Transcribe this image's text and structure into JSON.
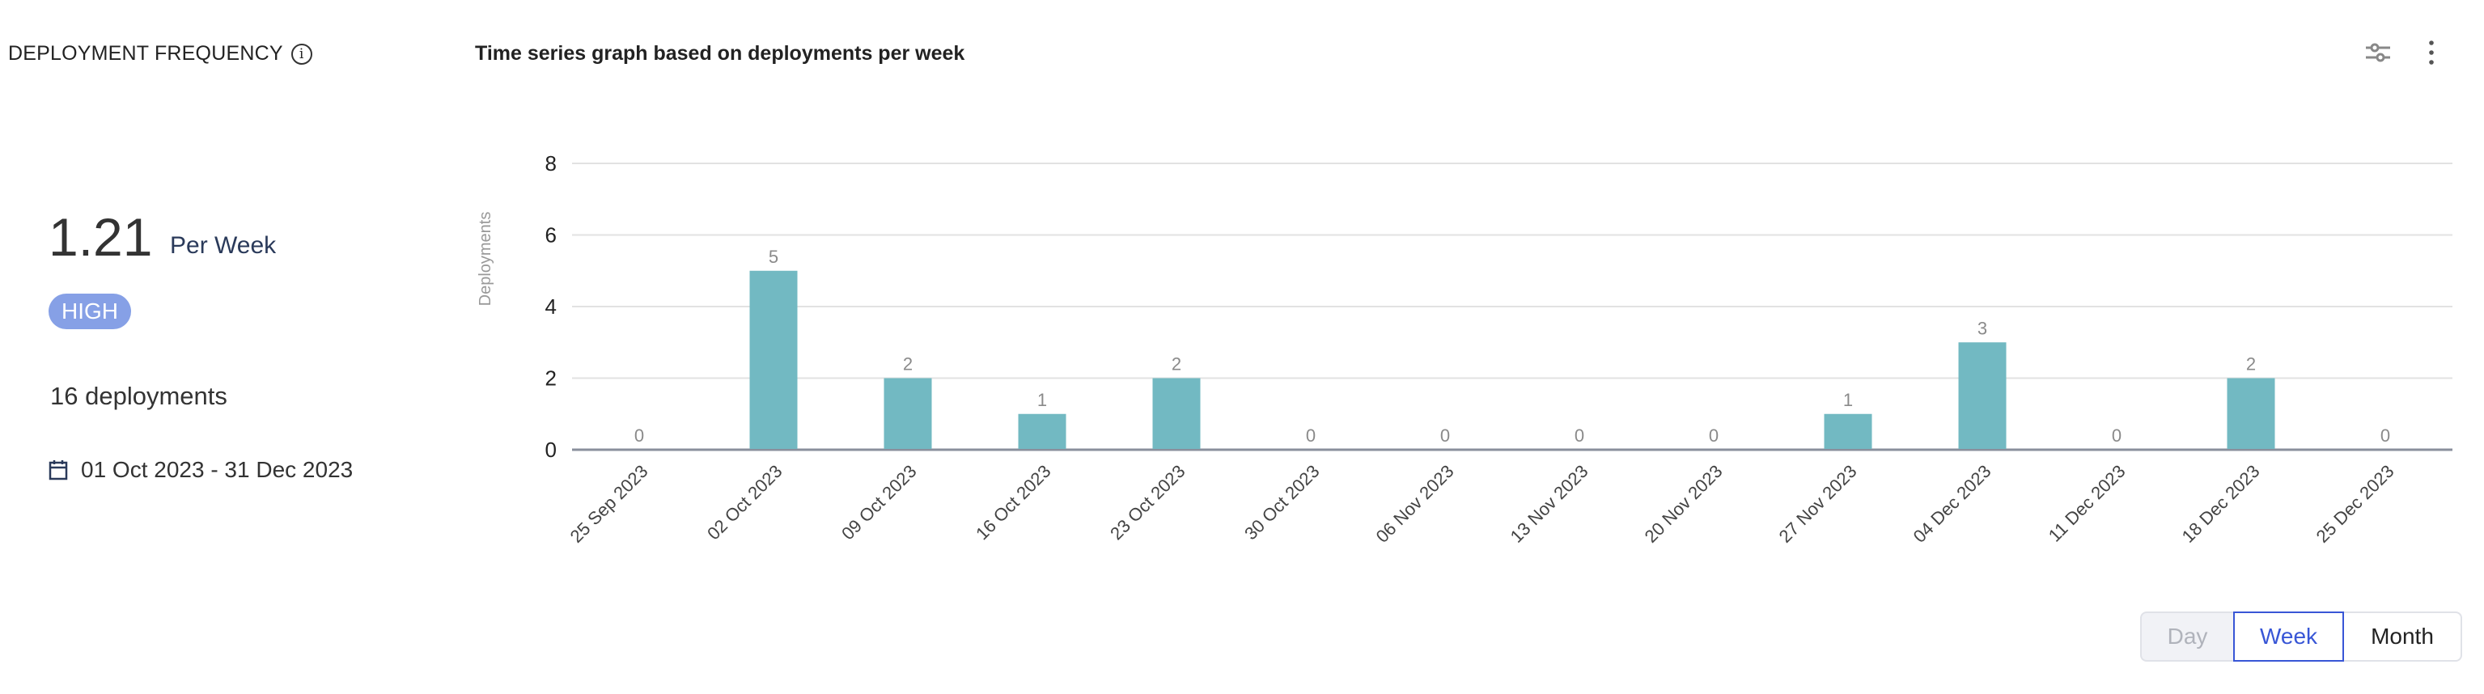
{
  "metric": {
    "title": "DEPLOYMENT FREQUENCY",
    "info_icon": "info-icon",
    "value": "1.21",
    "unit": "Per Week",
    "badge": "HIGH",
    "badge_color": "#86a0e6",
    "deployments": "16 deployments",
    "date_range": "01 Oct 2023 - 31 Dec 2023",
    "date_icon": "calendar-icon"
  },
  "header": {
    "chart_title": "Time series graph based on deployments per week",
    "icons": [
      "filter-sliders-icon",
      "more-vertical-icon"
    ]
  },
  "toggle": {
    "options": [
      "Day",
      "Week",
      "Month"
    ],
    "selected": "Week"
  },
  "chart_data": {
    "type": "bar",
    "title": "Time series graph based on deployments per week",
    "ylabel": "Deployments",
    "xlabel": "",
    "ylim": [
      0,
      8
    ],
    "yticks": [
      "0",
      "2",
      "4",
      "6",
      "8"
    ],
    "grid": true,
    "bar_color": "#72b9c2",
    "categories": [
      "25 Sep 2023",
      "02 Oct 2023",
      "09 Oct 2023",
      "16 Oct 2023",
      "23 Oct 2023",
      "30 Oct 2023",
      "06 Nov 2023",
      "13 Nov 2023",
      "20 Nov 2023",
      "27 Nov 2023",
      "04 Dec 2023",
      "11 Dec 2023",
      "18 Dec 2023",
      "25 Dec 2023"
    ],
    "values": [
      0,
      5,
      2,
      1,
      2,
      0,
      0,
      0,
      0,
      1,
      3,
      0,
      2,
      0
    ]
  }
}
